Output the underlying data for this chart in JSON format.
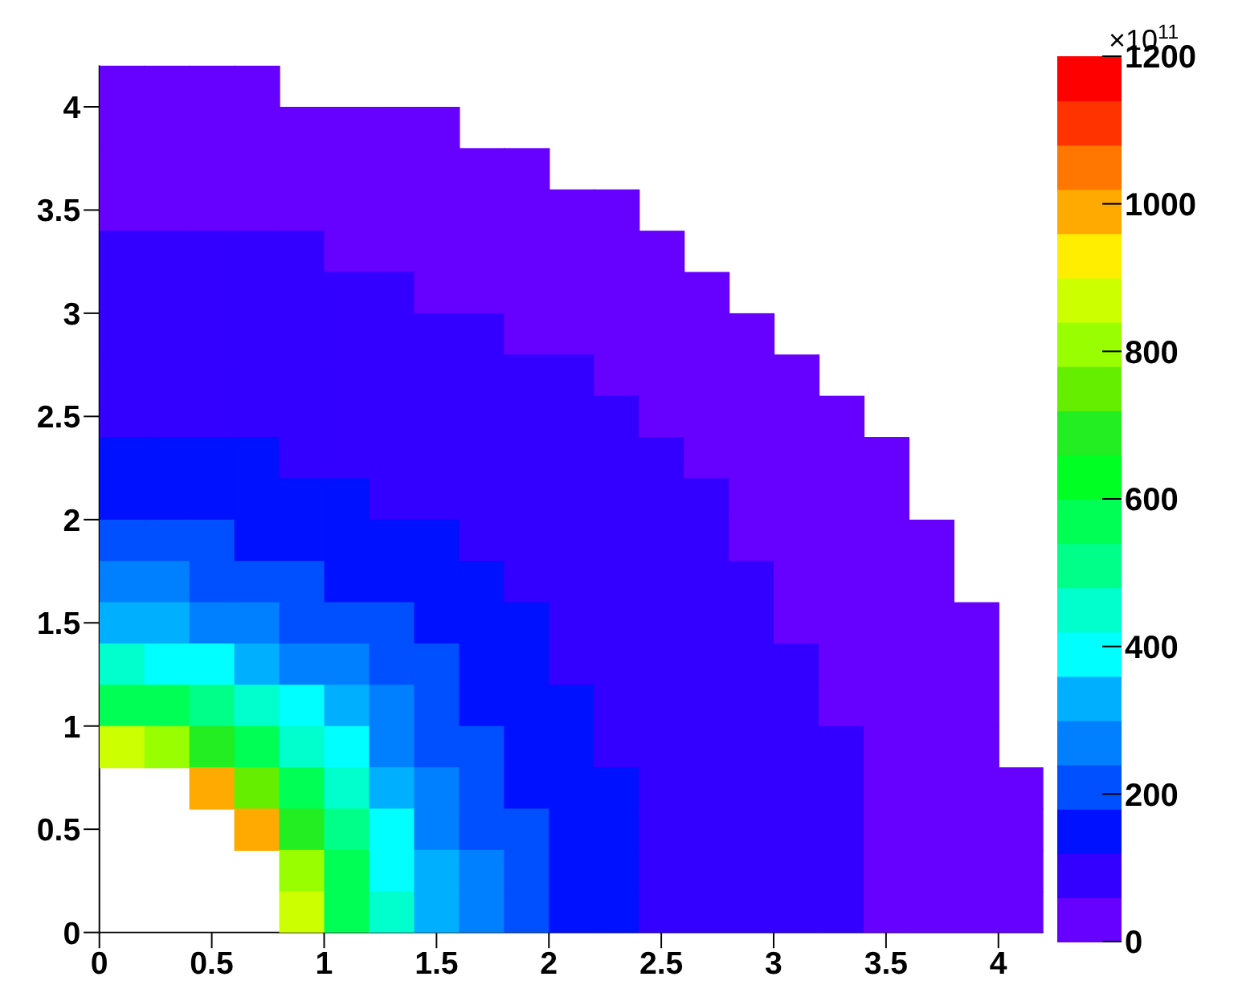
{
  "chart_data": {
    "type": "heatmap",
    "x": [
      0.1,
      0.3,
      0.5,
      0.7,
      0.9,
      1.1,
      1.3,
      1.5,
      1.7,
      1.9,
      2.1,
      2.3,
      2.5,
      2.7,
      2.9,
      3.1,
      3.3,
      3.5,
      3.7,
      3.9,
      4.1
    ],
    "y": [
      4.1,
      3.9,
      3.7,
      3.5,
      3.3,
      3.1,
      2.9,
      2.7,
      2.5,
      2.3,
      2.1,
      1.9,
      1.7,
      1.5,
      1.3,
      1.1,
      0.9,
      0.7,
      0.5,
      0.3,
      0.1
    ],
    "xlim": [
      0,
      4.2
    ],
    "ylim": [
      0,
      4.2
    ],
    "xticks": [
      0,
      0.5,
      1,
      1.5,
      2,
      2.5,
      3,
      3.5,
      4
    ],
    "yticks": [
      0,
      0.5,
      1,
      1.5,
      2,
      2.5,
      3,
      3.5,
      4
    ],
    "clim": [
      0,
      1200
    ],
    "cticks": [
      0,
      200,
      400,
      600,
      800,
      1000,
      1200
    ],
    "clabel": "×10$^{11}$",
    "cells": [
      [
        30,
        30,
        30,
        30,
        null,
        null,
        null,
        null,
        null,
        null,
        null,
        null,
        null,
        null,
        null,
        null,
        null,
        null,
        null,
        null,
        null
      ],
      [
        30,
        30,
        30,
        30,
        30,
        30,
        30,
        30,
        null,
        null,
        null,
        null,
        null,
        null,
        null,
        null,
        null,
        null,
        null,
        null,
        null
      ],
      [
        30,
        30,
        30,
        30,
        30,
        30,
        30,
        30,
        30,
        30,
        null,
        null,
        null,
        null,
        null,
        null,
        null,
        null,
        null,
        null,
        null
      ],
      [
        30,
        30,
        30,
        30,
        30,
        30,
        30,
        30,
        30,
        30,
        30,
        30,
        null,
        null,
        null,
        null,
        null,
        null,
        null,
        null,
        null
      ],
      [
        90,
        90,
        90,
        90,
        90,
        30,
        30,
        30,
        30,
        30,
        30,
        30,
        30,
        null,
        null,
        null,
        null,
        null,
        null,
        null,
        null
      ],
      [
        90,
        90,
        90,
        90,
        90,
        90,
        90,
        30,
        30,
        30,
        30,
        30,
        30,
        30,
        null,
        null,
        null,
        null,
        null,
        null,
        null
      ],
      [
        90,
        90,
        90,
        90,
        90,
        90,
        90,
        90,
        90,
        30,
        30,
        30,
        30,
        30,
        30,
        null,
        null,
        null,
        null,
        null,
        null
      ],
      [
        90,
        90,
        90,
        90,
        90,
        90,
        90,
        90,
        90,
        90,
        90,
        30,
        30,
        30,
        30,
        30,
        null,
        null,
        null,
        null,
        null
      ],
      [
        90,
        90,
        90,
        90,
        90,
        90,
        90,
        90,
        90,
        90,
        90,
        90,
        30,
        30,
        30,
        30,
        30,
        null,
        null,
        null,
        null
      ],
      [
        150,
        150,
        150,
        150,
        90,
        90,
        90,
        90,
        90,
        90,
        90,
        90,
        90,
        30,
        30,
        30,
        30,
        30,
        null,
        null,
        null
      ],
      [
        150,
        150,
        150,
        150,
        150,
        150,
        90,
        90,
        90,
        90,
        90,
        90,
        90,
        90,
        30,
        30,
        30,
        30,
        null,
        null,
        null
      ],
      [
        210,
        210,
        210,
        150,
        150,
        150,
        150,
        150,
        90,
        90,
        90,
        90,
        90,
        90,
        30,
        30,
        30,
        30,
        30,
        null,
        null
      ],
      [
        270,
        270,
        210,
        210,
        210,
        150,
        150,
        150,
        150,
        90,
        90,
        90,
        90,
        90,
        90,
        30,
        30,
        30,
        30,
        null,
        null
      ],
      [
        330,
        330,
        270,
        270,
        210,
        210,
        210,
        150,
        150,
        150,
        90,
        90,
        90,
        90,
        90,
        30,
        30,
        30,
        30,
        30,
        null
      ],
      [
        450,
        390,
        390,
        330,
        270,
        270,
        210,
        210,
        150,
        150,
        90,
        90,
        90,
        90,
        90,
        90,
        30,
        30,
        30,
        30,
        null
      ],
      [
        570,
        570,
        510,
        450,
        390,
        330,
        270,
        210,
        150,
        150,
        150,
        90,
        90,
        90,
        90,
        90,
        30,
        30,
        30,
        30,
        null
      ],
      [
        870,
        810,
        690,
        570,
        450,
        390,
        270,
        210,
        210,
        150,
        150,
        90,
        90,
        90,
        90,
        90,
        90,
        30,
        30,
        30,
        null
      ],
      [
        null,
        null,
        990,
        750,
        570,
        450,
        330,
        270,
        210,
        150,
        150,
        150,
        90,
        90,
        90,
        90,
        90,
        30,
        30,
        30,
        30
      ],
      [
        null,
        null,
        null,
        990,
        690,
        510,
        390,
        270,
        210,
        210,
        150,
        150,
        90,
        90,
        90,
        90,
        90,
        30,
        30,
        30,
        30
      ],
      [
        null,
        null,
        null,
        null,
        810,
        570,
        390,
        330,
        270,
        210,
        150,
        150,
        90,
        90,
        90,
        90,
        90,
        30,
        30,
        30,
        30
      ],
      [
        null,
        null,
        null,
        null,
        870,
        570,
        450,
        330,
        270,
        210,
        150,
        150,
        90,
        90,
        90,
        90,
        90,
        30,
        30,
        30,
        30
      ]
    ]
  }
}
